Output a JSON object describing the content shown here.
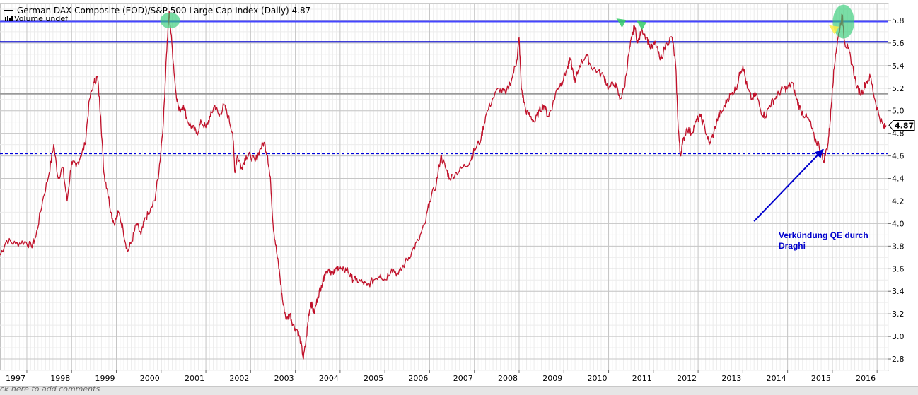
{
  "chart_data": {
    "type": "line",
    "title": "German DAX Composite (EOD)/S&P 500 Large Cap Index (Daily) 4.87",
    "subtitle": "Volume undef",
    "last_value_label": "4.87",
    "last_value": 4.87,
    "xlabel": "",
    "ylabel": "",
    "x_range": [
      1996.4,
      2016.25
    ],
    "ylim": [
      2.7,
      5.95
    ],
    "x_tick_labels": [
      "1997",
      "1998",
      "1999",
      "2000",
      "2001",
      "2002",
      "2003",
      "2004",
      "2005",
      "2006",
      "2007",
      "2008",
      "2009",
      "2010",
      "2011",
      "2012",
      "2013",
      "2014",
      "2015",
      "2016"
    ],
    "x_ticks": [
      1997,
      1998,
      1999,
      2000,
      2001,
      2002,
      2003,
      2004,
      2005,
      2006,
      2007,
      2008,
      2009,
      2010,
      2011,
      2012,
      2013,
      2014,
      2015,
      2016
    ],
    "y_tick_labels": [
      "2.8",
      "3.0",
      "3.2",
      "3.4",
      "3.6",
      "3.8",
      "4.0",
      "4.2",
      "4.4",
      "4.6",
      "4.8",
      "5.0",
      "5.2",
      "5.4",
      "5.6",
      "5.8"
    ],
    "y_ticks": [
      2.8,
      3.0,
      3.2,
      3.4,
      3.6,
      3.8,
      4.0,
      4.2,
      4.4,
      4.6,
      4.8,
      5.0,
      5.2,
      5.4,
      5.6,
      5.8
    ],
    "grid": true,
    "series": [
      {
        "color": "#c0112a",
        "points": [
          [
            1996.4,
            3.72
          ],
          [
            1996.55,
            3.85
          ],
          [
            1996.75,
            3.82
          ],
          [
            1996.95,
            3.84
          ],
          [
            1997.1,
            3.8
          ],
          [
            1997.2,
            3.88
          ],
          [
            1997.35,
            4.2
          ],
          [
            1997.5,
            4.45
          ],
          [
            1997.6,
            4.7
          ],
          [
            1997.7,
            4.4
          ],
          [
            1997.8,
            4.5
          ],
          [
            1997.9,
            4.2
          ],
          [
            1998.0,
            4.55
          ],
          [
            1998.1,
            4.5
          ],
          [
            1998.2,
            4.6
          ],
          [
            1998.3,
            4.7
          ],
          [
            1998.4,
            5.1
          ],
          [
            1998.5,
            5.25
          ],
          [
            1998.58,
            5.3
          ],
          [
            1998.65,
            4.95
          ],
          [
            1998.72,
            4.45
          ],
          [
            1998.8,
            4.3
          ],
          [
            1998.88,
            4.1
          ],
          [
            1998.95,
            4.0
          ],
          [
            1999.05,
            4.1
          ],
          [
            1999.15,
            3.95
          ],
          [
            1999.25,
            3.75
          ],
          [
            1999.35,
            3.85
          ],
          [
            1999.45,
            4.0
          ],
          [
            1999.55,
            3.9
          ],
          [
            1999.65,
            4.05
          ],
          [
            1999.75,
            4.1
          ],
          [
            1999.85,
            4.2
          ],
          [
            1999.95,
            4.45
          ],
          [
            2000.05,
            4.9
          ],
          [
            2000.12,
            5.5
          ],
          [
            2000.18,
            5.88
          ],
          [
            2000.25,
            5.55
          ],
          [
            2000.32,
            5.2
          ],
          [
            2000.4,
            5.0
          ],
          [
            2000.5,
            5.05
          ],
          [
            2000.6,
            4.9
          ],
          [
            2000.7,
            4.85
          ],
          [
            2000.8,
            4.8
          ],
          [
            2000.9,
            4.9
          ],
          [
            2001.0,
            4.85
          ],
          [
            2001.1,
            4.95
          ],
          [
            2001.2,
            5.05
          ],
          [
            2001.3,
            4.95
          ],
          [
            2001.4,
            5.05
          ],
          [
            2001.5,
            4.95
          ],
          [
            2001.6,
            4.8
          ],
          [
            2001.65,
            4.45
          ],
          [
            2001.7,
            4.6
          ],
          [
            2001.8,
            4.5
          ],
          [
            2001.9,
            4.6
          ],
          [
            2002.0,
            4.6
          ],
          [
            2002.1,
            4.55
          ],
          [
            2002.2,
            4.65
          ],
          [
            2002.3,
            4.72
          ],
          [
            2002.38,
            4.6
          ],
          [
            2002.45,
            4.35
          ],
          [
            2002.5,
            4.0
          ],
          [
            2002.58,
            3.75
          ],
          [
            2002.65,
            3.55
          ],
          [
            2002.72,
            3.3
          ],
          [
            2002.8,
            3.15
          ],
          [
            2002.88,
            3.2
          ],
          [
            2002.95,
            3.1
          ],
          [
            2003.05,
            3.05
          ],
          [
            2003.12,
            2.95
          ],
          [
            2003.18,
            2.8
          ],
          [
            2003.25,
            3.0
          ],
          [
            2003.3,
            3.2
          ],
          [
            2003.35,
            3.3
          ],
          [
            2003.42,
            3.2
          ],
          [
            2003.5,
            3.35
          ],
          [
            2003.58,
            3.45
          ],
          [
            2003.65,
            3.55
          ],
          [
            2003.75,
            3.6
          ],
          [
            2003.85,
            3.55
          ],
          [
            2003.95,
            3.62
          ],
          [
            2004.05,
            3.58
          ],
          [
            2004.15,
            3.6
          ],
          [
            2004.25,
            3.52
          ],
          [
            2004.35,
            3.5
          ],
          [
            2004.5,
            3.48
          ],
          [
            2004.6,
            3.45
          ],
          [
            2004.75,
            3.5
          ],
          [
            2004.9,
            3.55
          ],
          [
            2005.0,
            3.5
          ],
          [
            2005.15,
            3.6
          ],
          [
            2005.3,
            3.55
          ],
          [
            2005.45,
            3.65
          ],
          [
            2005.6,
            3.75
          ],
          [
            2005.75,
            3.85
          ],
          [
            2005.9,
            4.0
          ],
          [
            2006.0,
            4.2
          ],
          [
            2006.15,
            4.35
          ],
          [
            2006.25,
            4.6
          ],
          [
            2006.35,
            4.5
          ],
          [
            2006.45,
            4.4
          ],
          [
            2006.6,
            4.45
          ],
          [
            2006.75,
            4.5
          ],
          [
            2006.9,
            4.55
          ],
          [
            2007.0,
            4.65
          ],
          [
            2007.15,
            4.75
          ],
          [
            2007.25,
            4.95
          ],
          [
            2007.4,
            5.1
          ],
          [
            2007.55,
            5.2
          ],
          [
            2007.7,
            5.15
          ],
          [
            2007.85,
            5.3
          ],
          [
            2007.95,
            5.45
          ],
          [
            2008.0,
            5.65
          ],
          [
            2008.05,
            5.2
          ],
          [
            2008.15,
            5.0
          ],
          [
            2008.25,
            4.95
          ],
          [
            2008.35,
            4.9
          ],
          [
            2008.45,
            5.0
          ],
          [
            2008.55,
            5.05
          ],
          [
            2008.65,
            4.95
          ],
          [
            2008.75,
            5.05
          ],
          [
            2008.85,
            5.2
          ],
          [
            2008.95,
            5.25
          ],
          [
            2009.05,
            5.35
          ],
          [
            2009.15,
            5.45
          ],
          [
            2009.25,
            5.25
          ],
          [
            2009.35,
            5.4
          ],
          [
            2009.5,
            5.5
          ],
          [
            2009.6,
            5.4
          ],
          [
            2009.75,
            5.35
          ],
          [
            2009.9,
            5.3
          ],
          [
            2010.0,
            5.2
          ],
          [
            2010.15,
            5.25
          ],
          [
            2010.25,
            5.1
          ],
          [
            2010.35,
            5.2
          ],
          [
            2010.45,
            5.5
          ],
          [
            2010.52,
            5.65
          ],
          [
            2010.58,
            5.75
          ],
          [
            2010.65,
            5.6
          ],
          [
            2010.75,
            5.72
          ],
          [
            2010.85,
            5.65
          ],
          [
            2010.95,
            5.55
          ],
          [
            2011.05,
            5.6
          ],
          [
            2011.15,
            5.45
          ],
          [
            2011.3,
            5.6
          ],
          [
            2011.42,
            5.65
          ],
          [
            2011.5,
            5.4
          ],
          [
            2011.55,
            4.9
          ],
          [
            2011.6,
            4.6
          ],
          [
            2011.65,
            4.7
          ],
          [
            2011.75,
            4.85
          ],
          [
            2011.85,
            4.8
          ],
          [
            2011.95,
            4.9
          ],
          [
            2012.05,
            4.95
          ],
          [
            2012.15,
            4.85
          ],
          [
            2012.25,
            4.7
          ],
          [
            2012.35,
            4.8
          ],
          [
            2012.45,
            4.95
          ],
          [
            2012.55,
            5.0
          ],
          [
            2012.65,
            5.1
          ],
          [
            2012.75,
            5.15
          ],
          [
            2012.85,
            5.2
          ],
          [
            2012.95,
            5.35
          ],
          [
            2013.0,
            5.4
          ],
          [
            2013.1,
            5.2
          ],
          [
            2013.2,
            5.1
          ],
          [
            2013.3,
            5.15
          ],
          [
            2013.4,
            5.0
          ],
          [
            2013.5,
            4.95
          ],
          [
            2013.6,
            5.05
          ],
          [
            2013.7,
            5.1
          ],
          [
            2013.8,
            5.15
          ],
          [
            2013.9,
            5.2
          ],
          [
            2014.0,
            5.2
          ],
          [
            2014.1,
            5.25
          ],
          [
            2014.2,
            5.1
          ],
          [
            2014.3,
            5.0
          ],
          [
            2014.4,
            4.95
          ],
          [
            2014.5,
            4.9
          ],
          [
            2014.6,
            4.75
          ],
          [
            2014.7,
            4.7
          ],
          [
            2014.8,
            4.55
          ],
          [
            2014.9,
            4.7
          ],
          [
            2014.95,
            4.9
          ],
          [
            2015.0,
            5.2
          ],
          [
            2015.07,
            5.5
          ],
          [
            2015.15,
            5.7
          ],
          [
            2015.22,
            5.85
          ],
          [
            2015.28,
            5.6
          ],
          [
            2015.35,
            5.55
          ],
          [
            2015.45,
            5.4
          ],
          [
            2015.55,
            5.2
          ],
          [
            2015.65,
            5.15
          ],
          [
            2015.75,
            5.25
          ],
          [
            2015.85,
            5.3
          ],
          [
            2015.95,
            5.1
          ],
          [
            2016.05,
            4.95
          ],
          [
            2016.15,
            4.85
          ],
          [
            2016.2,
            4.87
          ]
        ]
      }
    ],
    "horizontal_lines": [
      {
        "y": 5.79,
        "color": "#4444ff",
        "style": "solid"
      },
      {
        "y": 5.61,
        "color": "#0000cc",
        "style": "solid"
      },
      {
        "y": 5.15,
        "color": "#9a9a9a",
        "style": "solid"
      },
      {
        "y": 4.62,
        "color": "#0000dd",
        "style": "dashed"
      }
    ],
    "highlights": [
      {
        "x": 2000.2,
        "y": 5.8,
        "kind": "ellipse",
        "rx": 0.22,
        "ry": 0.07,
        "color": "#33cc77"
      },
      {
        "x": 2015.25,
        "y": 5.79,
        "kind": "ellipse",
        "rx": 0.24,
        "ry": 0.15,
        "color": "#33cc77"
      },
      {
        "x": 2010.3,
        "y": 5.78,
        "kind": "triangle",
        "color": "#33cc66"
      },
      {
        "x": 2010.75,
        "y": 5.76,
        "kind": "triangle",
        "color": "#33cc66"
      },
      {
        "x": 2015.05,
        "y": 5.72,
        "kind": "triangle",
        "color": "#ffee44"
      }
    ],
    "annotation": {
      "lines": [
        "Verkündung QE durch",
        "Draghi"
      ],
      "color": "#0000cc",
      "text_x": 2013.8,
      "text_y": 3.87,
      "arrow_from": [
        2013.25,
        4.02
      ],
      "arrow_to": [
        2014.8,
        4.66
      ]
    }
  },
  "footer": {
    "comment_prompt": "ck here to add comments"
  }
}
